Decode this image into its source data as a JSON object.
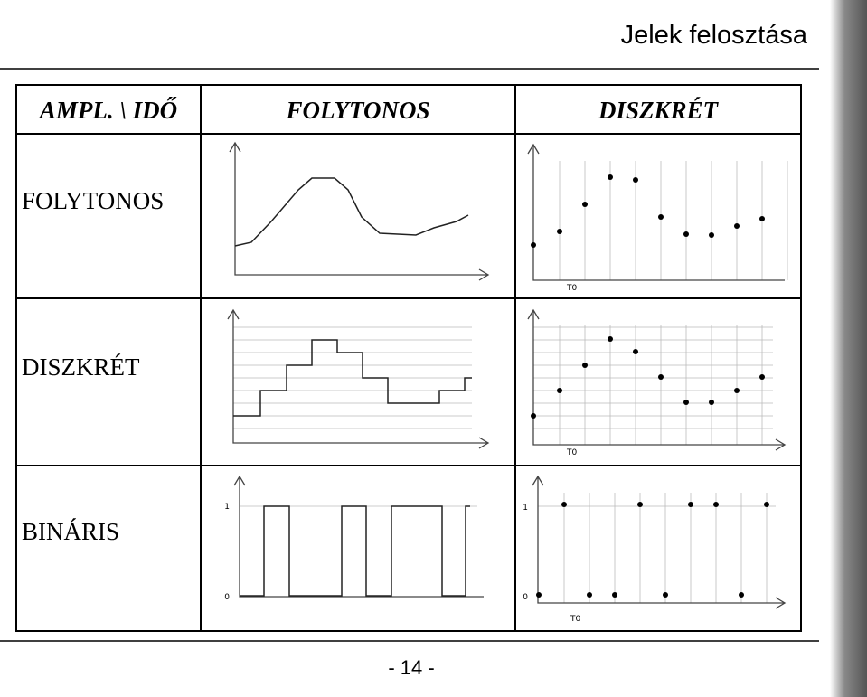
{
  "header": {
    "title": "Jelek felosztása"
  },
  "table": {
    "header": [
      "AMPL. \\ IDŐ",
      "FOLYTONOS",
      "DISZKRÉT"
    ],
    "row_labels": [
      "FOLYTONOS",
      "DISZKRÉT",
      "BINÁRIS"
    ]
  },
  "plots": {
    "t0_label": "T0",
    "high_label": "1",
    "low_label": "0"
  },
  "footer": {
    "page_number": "- 14 -"
  }
}
